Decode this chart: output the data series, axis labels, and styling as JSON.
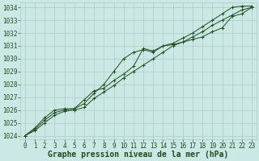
{
  "title": "Graphe pression niveau de la mer (hPa)",
  "bg_color": "#cce8e4",
  "grid_color": "#aaccc8",
  "line_color": "#1e4d1e",
  "x_min": 0,
  "x_max": 23,
  "y_min": 1024,
  "y_max": 1034,
  "line1_x": [
    0,
    1,
    2,
    3,
    4,
    5,
    6,
    7,
    8,
    9,
    10,
    11,
    12,
    13,
    14,
    15,
    16,
    17,
    18,
    19,
    20,
    21,
    22,
    23
  ],
  "line1_y": [
    1024.0,
    1024.5,
    1025.2,
    1025.8,
    1026.0,
    1026.1,
    1026.5,
    1027.3,
    1028.0,
    1029.0,
    1030.0,
    1030.5,
    1030.7,
    1030.5,
    1031.0,
    1031.2,
    1031.6,
    1032.0,
    1032.5,
    1033.0,
    1033.5,
    1034.0,
    1034.1,
    1034.1
  ],
  "line2_x": [
    0,
    1,
    2,
    3,
    4,
    5,
    6,
    7,
    8,
    9,
    10,
    11,
    12,
    13,
    14,
    15,
    16,
    17,
    18,
    19,
    20,
    21,
    22,
    23
  ],
  "line2_y": [
    1024.0,
    1024.4,
    1025.0,
    1025.6,
    1025.9,
    1026.0,
    1026.2,
    1026.9,
    1027.4,
    1027.9,
    1028.5,
    1029.0,
    1029.5,
    1030.0,
    1030.5,
    1031.0,
    1031.3,
    1031.7,
    1032.1,
    1032.6,
    1033.0,
    1033.4,
    1033.8,
    1034.0
  ],
  "line3_x": [
    0,
    1,
    2,
    3,
    4,
    5,
    6,
    7,
    8,
    9,
    10,
    11,
    12,
    13,
    14,
    15,
    16,
    17,
    18,
    19,
    20,
    21,
    22,
    23
  ],
  "line3_y": [
    1024.0,
    1024.6,
    1025.4,
    1026.0,
    1026.1,
    1026.1,
    1026.8,
    1027.5,
    1027.7,
    1028.3,
    1028.8,
    1029.4,
    1030.8,
    1030.6,
    1031.0,
    1031.1,
    1031.3,
    1031.5,
    1031.7,
    1032.1,
    1032.4,
    1033.3,
    1033.5,
    1034.0
  ],
  "yticks": [
    1024,
    1025,
    1026,
    1027,
    1028,
    1029,
    1030,
    1031,
    1032,
    1033,
    1034
  ],
  "xticks": [
    0,
    1,
    2,
    3,
    4,
    5,
    6,
    7,
    8,
    9,
    10,
    11,
    12,
    13,
    14,
    15,
    16,
    17,
    18,
    19,
    20,
    21,
    22,
    23
  ],
  "title_fontsize": 7,
  "tick_fontsize": 5.5,
  "marker": "+"
}
